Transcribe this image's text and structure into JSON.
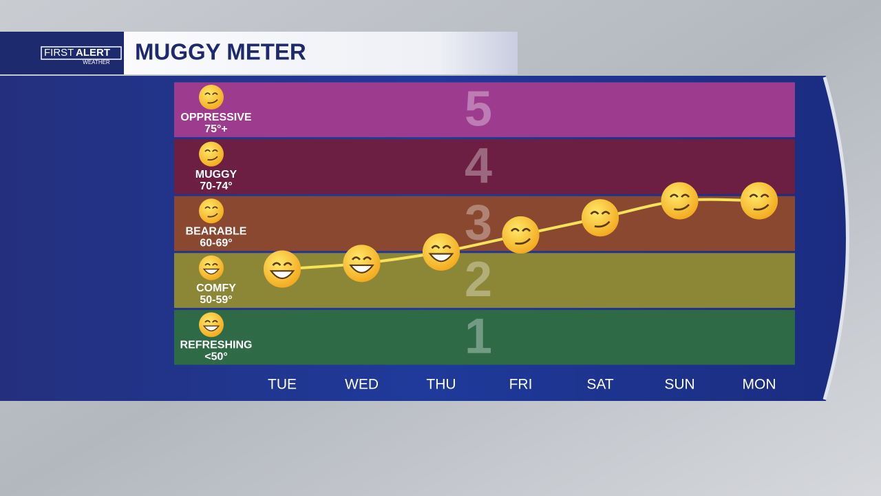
{
  "header": {
    "brand_first": "FIRST",
    "brand_alert": "ALERT",
    "brand_sub": "WEATHER",
    "title": "MUGGY METER"
  },
  "chart_data": {
    "type": "line",
    "categories": [
      "TUE",
      "WED",
      "THU",
      "FRI",
      "SAT",
      "SUN",
      "MON"
    ],
    "values": [
      2.2,
      2.3,
      2.5,
      2.8,
      3.1,
      3.4,
      3.4
    ],
    "color": "#f7e35a",
    "ylim": [
      0.5,
      5.5
    ],
    "yticks": [
      1,
      2,
      3,
      4,
      5
    ],
    "levels": [
      {
        "name": "REFRESHING",
        "range": "<50°",
        "color": "#2f6a47"
      },
      {
        "name": "COMFY",
        "range": "50-59°",
        "color": "#8c8737"
      },
      {
        "name": "BEARABLE",
        "range": "60-69°",
        "color": "#8a4830"
      },
      {
        "name": "MUGGY",
        "range": "70-74°",
        "color": "#6c1f42"
      },
      {
        "name": "OPPRESSIVE",
        "range": "75°+",
        "color": "#9d3c8e"
      }
    ]
  }
}
